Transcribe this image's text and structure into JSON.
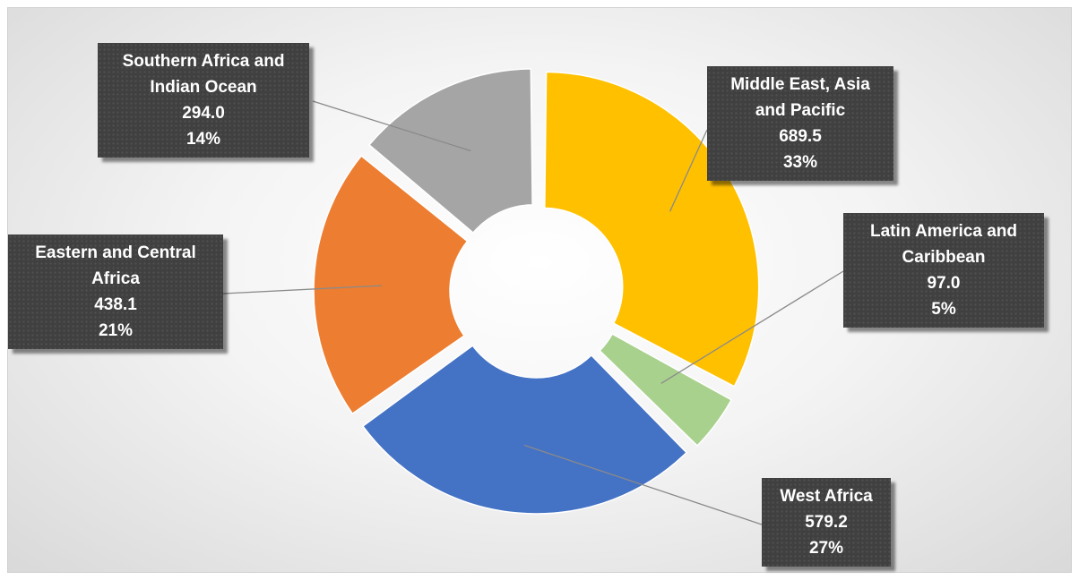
{
  "chart_data": {
    "type": "pie",
    "variant": "exploded-doughnut",
    "title": "",
    "series": [
      {
        "name": "Middle East, Asia\nand Pacific",
        "value": 689.5,
        "percent": "33%",
        "value_label": "689.5",
        "color": "#FFC000"
      },
      {
        "name": "Latin America and\nCaribbean",
        "value": 97.0,
        "percent": "5%",
        "value_label": "97.0",
        "color": "#A9D18E"
      },
      {
        "name": "West Africa",
        "value": 579.2,
        "percent": "27%",
        "value_label": "579.2",
        "color": "#4472C4"
      },
      {
        "name": "Eastern and Central\nAfrica",
        "value": 438.1,
        "percent": "21%",
        "value_label": "438.1",
        "color": "#ED7D31"
      },
      {
        "name": "Southern Africa and\nIndian Ocean",
        "value": 294.0,
        "percent": "14%",
        "value_label": "294.0",
        "color": "#A5A5A5"
      }
    ],
    "legend": "none",
    "data_labels": "callout boxes with category name, value and percentage"
  }
}
